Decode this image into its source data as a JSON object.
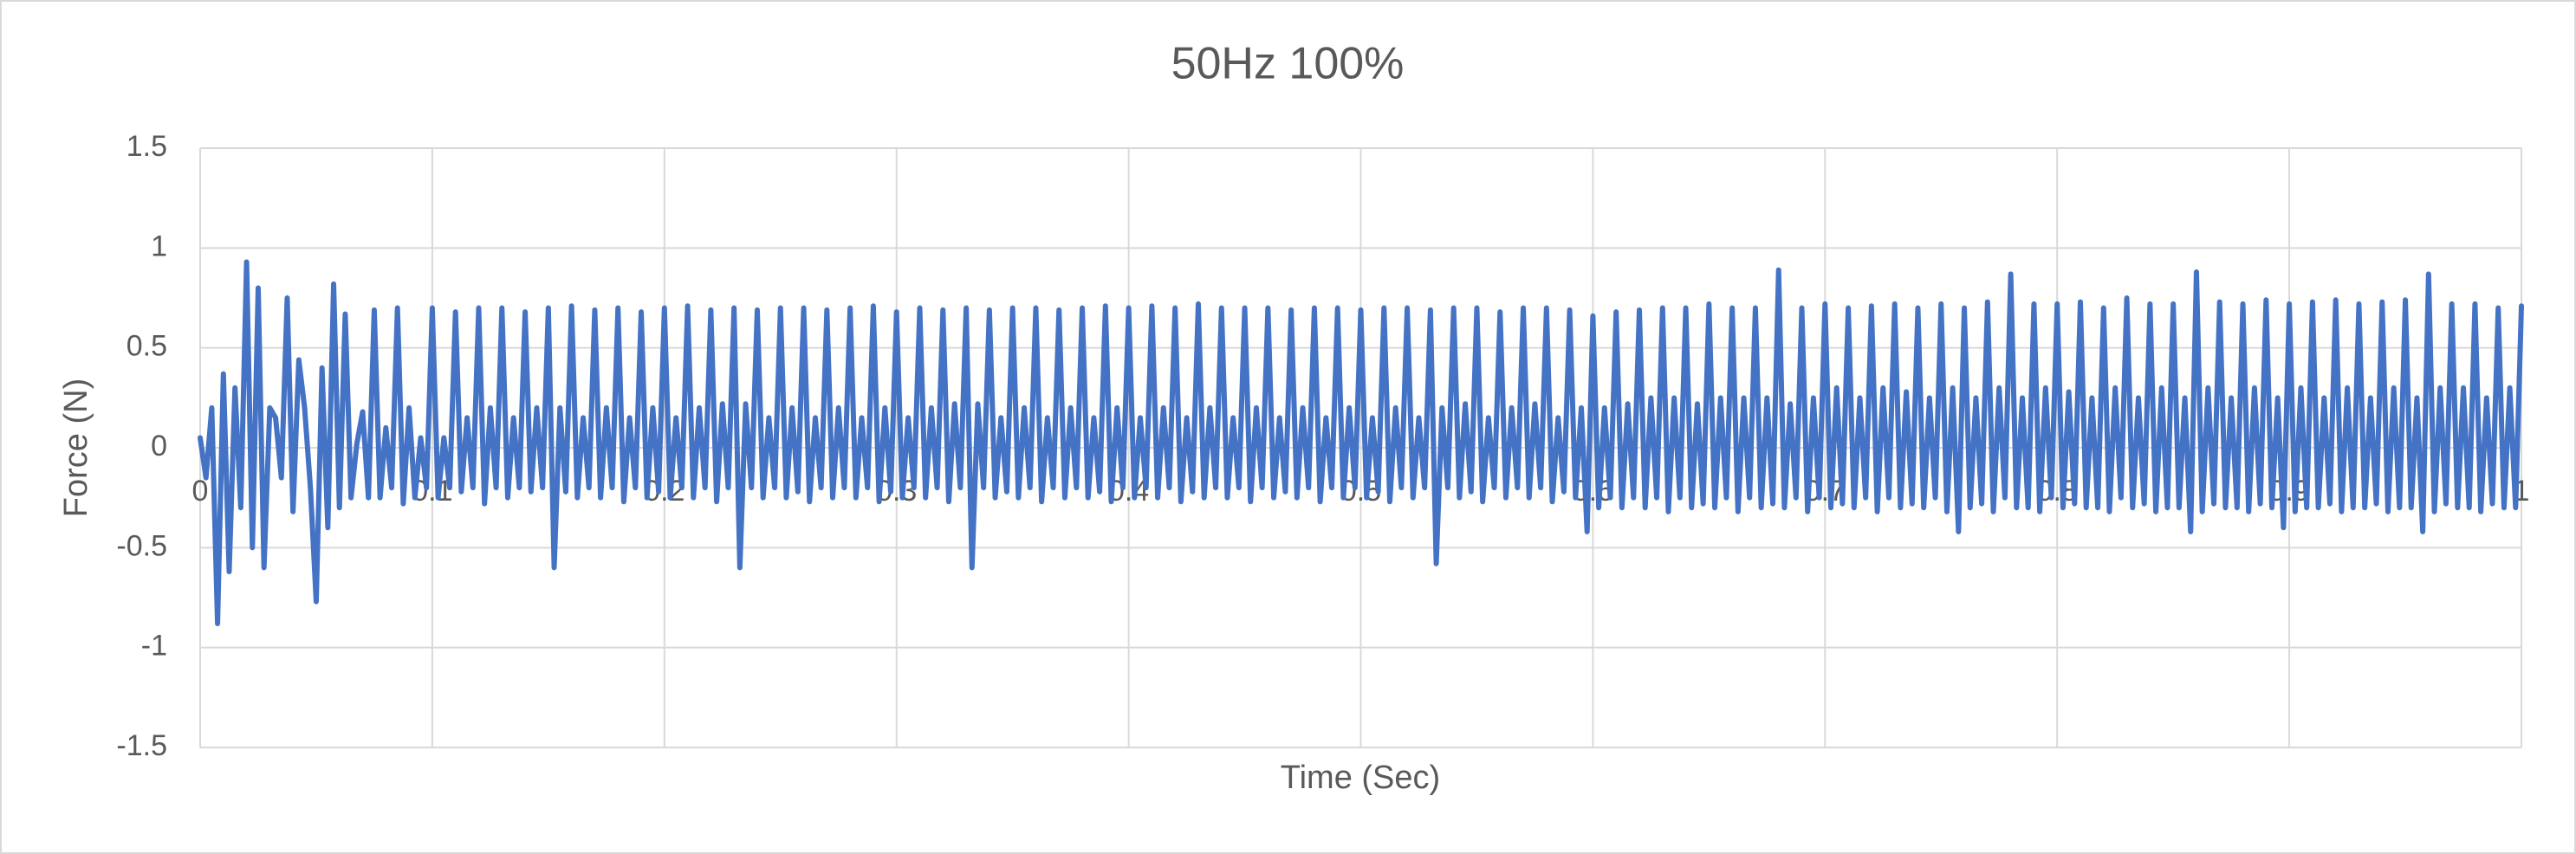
{
  "chart_data": {
    "type": "line",
    "title": "50Hz 100%",
    "x_label": "Time (Sec)",
    "y_label": "Force (N)",
    "color": "#4472c4",
    "grid": true,
    "xlim": [
      0,
      1
    ],
    "xticks": [
      0,
      0.1,
      0.2,
      0.3,
      0.4,
      0.5,
      0.6,
      0.7,
      0.8,
      0.9,
      1
    ],
    "ylim": [
      -1.5,
      1.5
    ],
    "yticks": [
      -1.5,
      -1,
      -0.5,
      0,
      0.5,
      1,
      1.5
    ],
    "x": [
      0,
      0.0025,
      0.005,
      0.0075,
      0.01,
      0.0125,
      0.015,
      0.0175,
      0.02,
      0.0225,
      0.025,
      0.0275,
      0.03,
      0.0325,
      0.035,
      0.0375,
      0.04,
      0.0425,
      0.045,
      0.0475,
      0.05,
      0.0525,
      0.055,
      0.0575,
      0.06,
      0.0625,
      0.065,
      0.0675,
      0.07,
      0.0725,
      0.075,
      0.0775,
      0.08,
      0.0825,
      0.085,
      0.0875,
      0.09,
      0.0925,
      0.095,
      0.0975,
      0.1,
      0.1025,
      0.105,
      0.1075,
      0.11,
      0.1125,
      0.115,
      0.1175,
      0.12,
      0.1225,
      0.125,
      0.1275,
      0.13,
      0.1325,
      0.135,
      0.1375,
      0.14,
      0.1425,
      0.145,
      0.1475,
      0.15,
      0.1525,
      0.155,
      0.1575,
      0.16,
      0.1625,
      0.165,
      0.1675,
      0.17,
      0.1725,
      0.175,
      0.1775,
      0.18,
      0.1825,
      0.185,
      0.1875,
      0.19,
      0.1925,
      0.195,
      0.1975,
      0.2,
      0.2025,
      0.205,
      0.2075,
      0.21,
      0.2125,
      0.215,
      0.2175,
      0.22,
      0.2225,
      0.225,
      0.2275,
      0.23,
      0.2325,
      0.235,
      0.2375,
      0.24,
      0.2425,
      0.245,
      0.2475,
      0.25,
      0.2525,
      0.255,
      0.2575,
      0.26,
      0.2625,
      0.265,
      0.2675,
      0.27,
      0.2725,
      0.275,
      0.2775,
      0.28,
      0.2825,
      0.285,
      0.2875,
      0.29,
      0.2925,
      0.295,
      0.2975,
      0.3,
      0.3025,
      0.305,
      0.3075,
      0.31,
      0.3125,
      0.315,
      0.3175,
      0.32,
      0.3225,
      0.325,
      0.3275,
      0.33,
      0.3325,
      0.335,
      0.3375,
      0.34,
      0.3425,
      0.345,
      0.3475,
      0.35,
      0.3525,
      0.355,
      0.3575,
      0.36,
      0.3625,
      0.365,
      0.3675,
      0.37,
      0.3725,
      0.375,
      0.3775,
      0.38,
      0.3825,
      0.385,
      0.3875,
      0.39,
      0.3925,
      0.395,
      0.3975,
      0.4,
      0.4025,
      0.405,
      0.4075,
      0.41,
      0.4125,
      0.415,
      0.4175,
      0.42,
      0.4225,
      0.425,
      0.4275,
      0.43,
      0.4325,
      0.435,
      0.4375,
      0.44,
      0.4425,
      0.445,
      0.4475,
      0.45,
      0.4525,
      0.455,
      0.4575,
      0.46,
      0.4625,
      0.465,
      0.4675,
      0.47,
      0.4725,
      0.475,
      0.4775,
      0.48,
      0.4825,
      0.485,
      0.4875,
      0.49,
      0.4925,
      0.495,
      0.4975,
      0.5,
      0.5025,
      0.505,
      0.5075,
      0.51,
      0.5125,
      0.515,
      0.5175,
      0.52,
      0.5225,
      0.525,
      0.5275,
      0.53,
      0.5325,
      0.535,
      0.5375,
      0.54,
      0.5425,
      0.545,
      0.5475,
      0.55,
      0.5525,
      0.555,
      0.5575,
      0.56,
      0.5625,
      0.565,
      0.5675,
      0.57,
      0.5725,
      0.575,
      0.5775,
      0.58,
      0.5825,
      0.585,
      0.5875,
      0.59,
      0.5925,
      0.595,
      0.5975,
      0.6,
      0.6025,
      0.605,
      0.6075,
      0.61,
      0.6125,
      0.615,
      0.6175,
      0.62,
      0.6225,
      0.625,
      0.6275,
      0.63,
      0.6325,
      0.635,
      0.6375,
      0.64,
      0.6425,
      0.645,
      0.6475,
      0.65,
      0.6525,
      0.655,
      0.6575,
      0.66,
      0.6625,
      0.665,
      0.6675,
      0.67,
      0.6725,
      0.675,
      0.6775,
      0.68,
      0.6825,
      0.685,
      0.6875,
      0.69,
      0.6925,
      0.695,
      0.6975,
      0.7,
      0.7025,
      0.705,
      0.7075,
      0.71,
      0.7125,
      0.715,
      0.7175,
      0.72,
      0.7225,
      0.725,
      0.7275,
      0.73,
      0.7325,
      0.735,
      0.7375,
      0.74,
      0.7425,
      0.745,
      0.7475,
      0.75,
      0.7525,
      0.755,
      0.7575,
      0.76,
      0.7625,
      0.765,
      0.7675,
      0.77,
      0.7725,
      0.775,
      0.7775,
      0.78,
      0.7825,
      0.785,
      0.7875,
      0.79,
      0.7925,
      0.795,
      0.7975,
      0.8,
      0.8025,
      0.805,
      0.8075,
      0.81,
      0.8125,
      0.815,
      0.8175,
      0.82,
      0.8225,
      0.825,
      0.8275,
      0.83,
      0.8325,
      0.835,
      0.8375,
      0.84,
      0.8425,
      0.845,
      0.8475,
      0.85,
      0.8525,
      0.855,
      0.8575,
      0.86,
      0.8625,
      0.865,
      0.8675,
      0.87,
      0.8725,
      0.875,
      0.8775,
      0.88,
      0.8825,
      0.885,
      0.8875,
      0.89,
      0.8925,
      0.895,
      0.8975,
      0.9,
      0.9025,
      0.905,
      0.9075,
      0.91,
      0.9125,
      0.915,
      0.9175,
      0.92,
      0.9225,
      0.925,
      0.9275,
      0.93,
      0.9325,
      0.935,
      0.9375,
      0.94,
      0.9425,
      0.945,
      0.9475,
      0.95,
      0.9525,
      0.955,
      0.9575,
      0.96,
      0.9625,
      0.965,
      0.9675,
      0.97,
      0.9725,
      0.975,
      0.9775,
      0.98,
      0.9825,
      0.985,
      0.9875,
      0.99,
      0.9925,
      0.995,
      0.9975,
      1
    ],
    "values": [
      0.05,
      -0.15,
      0.2,
      -0.88,
      0.37,
      -0.62,
      0.3,
      -0.3,
      0.93,
      -0.5,
      0.8,
      -0.6,
      0.2,
      0.15,
      -0.15,
      0.75,
      -0.32,
      0.44,
      0.2,
      -0.2,
      -0.77,
      0.4,
      -0.4,
      0.82,
      -0.3,
      0.67,
      -0.25,
      0.02,
      0.18,
      -0.25,
      0.69,
      -0.25,
      0.1,
      -0.2,
      0.7,
      -0.28,
      0.2,
      -0.25,
      0.05,
      -0.2,
      0.7,
      -0.25,
      0.05,
      -0.2,
      0.68,
      -0.22,
      0.15,
      -0.2,
      0.7,
      -0.28,
      0.2,
      -0.2,
      0.7,
      -0.25,
      0.15,
      -0.2,
      0.68,
      -0.22,
      0.2,
      -0.2,
      0.7,
      -0.6,
      0.2,
      -0.22,
      0.71,
      -0.25,
      0.15,
      -0.2,
      0.69,
      -0.25,
      0.2,
      -0.2,
      0.7,
      -0.27,
      0.15,
      -0.2,
      0.68,
      -0.25,
      0.2,
      -0.22,
      0.7,
      -0.25,
      0.15,
      -0.2,
      0.71,
      -0.25,
      0.2,
      -0.2,
      0.69,
      -0.27,
      0.22,
      -0.2,
      0.7,
      -0.6,
      0.22,
      -0.2,
      0.69,
      -0.25,
      0.15,
      -0.2,
      0.7,
      -0.25,
      0.2,
      -0.22,
      0.7,
      -0.27,
      0.15,
      -0.2,
      0.69,
      -0.25,
      0.2,
      -0.2,
      0.7,
      -0.25,
      0.15,
      -0.2,
      0.71,
      -0.27,
      0.2,
      -0.22,
      0.68,
      -0.25,
      0.15,
      -0.2,
      0.7,
      -0.25,
      0.2,
      -0.2,
      0.69,
      -0.27,
      0.22,
      -0.2,
      0.7,
      -0.6,
      0.22,
      -0.2,
      0.69,
      -0.25,
      0.15,
      -0.22,
      0.7,
      -0.25,
      0.2,
      -0.2,
      0.7,
      -0.27,
      0.15,
      -0.2,
      0.69,
      -0.25,
      0.2,
      -0.2,
      0.7,
      -0.25,
      0.15,
      -0.22,
      0.71,
      -0.27,
      0.2,
      -0.2,
      0.7,
      -0.25,
      0.15,
      -0.2,
      0.71,
      -0.25,
      0.2,
      -0.2,
      0.7,
      -0.27,
      0.15,
      -0.22,
      0.72,
      -0.25,
      0.2,
      -0.2,
      0.7,
      -0.25,
      0.15,
      -0.2,
      0.7,
      -0.27,
      0.2,
      -0.2,
      0.7,
      -0.25,
      0.15,
      -0.22,
      0.69,
      -0.25,
      0.2,
      -0.2,
      0.7,
      -0.27,
      0.15,
      -0.2,
      0.7,
      -0.25,
      0.2,
      -0.2,
      0.69,
      -0.25,
      0.15,
      -0.22,
      0.7,
      -0.27,
      0.2,
      -0.2,
      0.7,
      -0.25,
      0.15,
      -0.2,
      0.69,
      -0.58,
      0.2,
      -0.2,
      0.7,
      -0.25,
      0.22,
      -0.22,
      0.7,
      -0.27,
      0.15,
      -0.2,
      0.68,
      -0.25,
      0.2,
      -0.2,
      0.7,
      -0.25,
      0.22,
      -0.2,
      0.7,
      -0.27,
      0.15,
      -0.22,
      0.69,
      -0.25,
      0.2,
      -0.42,
      0.66,
      -0.3,
      0.2,
      -0.25,
      0.68,
      -0.3,
      0.22,
      -0.25,
      0.69,
      -0.3,
      0.25,
      -0.25,
      0.7,
      -0.32,
      0.25,
      -0.25,
      0.7,
      -0.3,
      0.22,
      -0.28,
      0.72,
      -0.3,
      0.25,
      -0.25,
      0.7,
      -0.32,
      0.25,
      -0.25,
      0.7,
      -0.3,
      0.25,
      -0.28,
      0.89,
      -0.3,
      0.22,
      -0.25,
      0.7,
      -0.32,
      0.25,
      -0.25,
      0.72,
      -0.3,
      0.3,
      -0.28,
      0.7,
      -0.3,
      0.25,
      -0.25,
      0.71,
      -0.32,
      0.3,
      -0.25,
      0.72,
      -0.3,
      0.28,
      -0.28,
      0.7,
      -0.3,
      0.25,
      -0.25,
      0.72,
      -0.32,
      0.3,
      -0.42,
      0.7,
      -0.3,
      0.25,
      -0.28,
      0.73,
      -0.32,
      0.3,
      -0.25,
      0.87,
      -0.3,
      0.25,
      -0.3,
      0.72,
      -0.32,
      0.3,
      -0.25,
      0.72,
      -0.3,
      0.28,
      -0.28,
      0.73,
      -0.3,
      0.25,
      -0.3,
      0.7,
      -0.32,
      0.3,
      -0.25,
      0.75,
      -0.3,
      0.25,
      -0.28,
      0.72,
      -0.32,
      0.3,
      -0.3,
      0.72,
      -0.3,
      0.25,
      -0.42,
      0.88,
      -0.32,
      0.3,
      -0.28,
      0.73,
      -0.3,
      0.25,
      -0.3,
      0.72,
      -0.32,
      0.3,
      -0.28,
      0.74,
      -0.3,
      0.25,
      -0.4,
      0.72,
      -0.32,
      0.3,
      -0.3,
      0.73,
      -0.3,
      0.25,
      -0.28,
      0.74,
      -0.32,
      0.3,
      -0.3,
      0.72,
      -0.3,
      0.25,
      -0.28,
      0.73,
      -0.32,
      0.3,
      -0.3,
      0.74,
      -0.3,
      0.25,
      -0.42,
      0.87,
      -0.32,
      0.3,
      -0.28,
      0.72,
      -0.3,
      0.3,
      -0.3,
      0.72,
      -0.32,
      0.25,
      -0.28,
      0.7,
      -0.3,
      0.3,
      -0.3,
      0.71
    ]
  }
}
